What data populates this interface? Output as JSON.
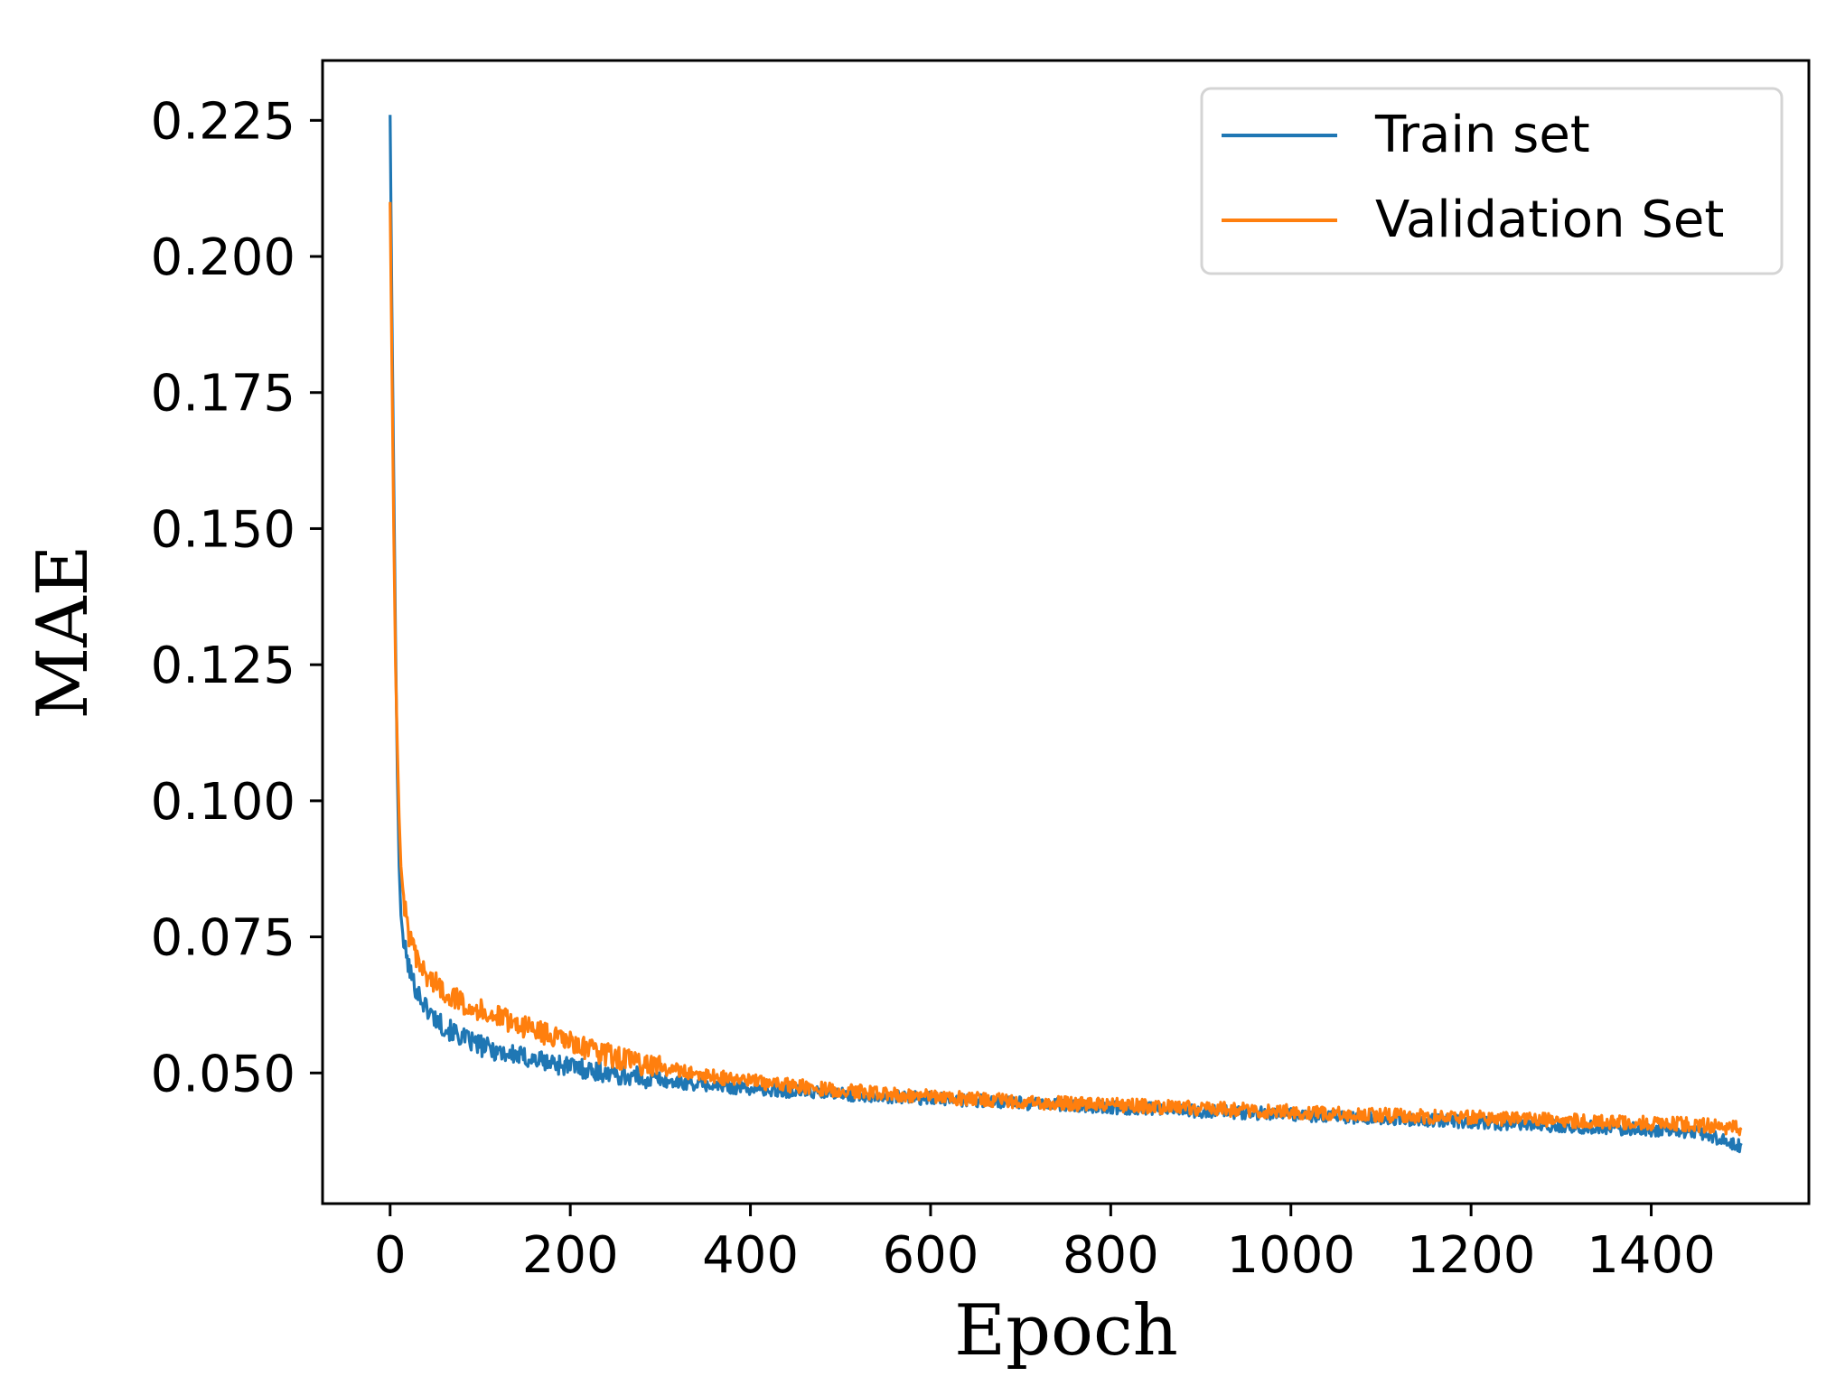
{
  "chart_data": {
    "type": "line",
    "title": "",
    "xlabel": "Epoch",
    "ylabel": "MAE",
    "xlim": [
      -75,
      1575
    ],
    "ylim": [
      0.026,
      0.236
    ],
    "xticks": [
      0,
      200,
      400,
      600,
      800,
      1000,
      1200,
      1400
    ],
    "xtick_labels": [
      "0",
      "200",
      "400",
      "600",
      "800",
      "1000",
      "1200",
      "1400"
    ],
    "yticks": [
      0.05,
      0.075,
      0.1,
      0.125,
      0.15,
      0.175,
      0.2,
      0.225
    ],
    "ytick_labels": [
      "0.050",
      "0.075",
      "0.100",
      "0.125",
      "0.150",
      "0.175",
      "0.200",
      "0.225"
    ],
    "grid": false,
    "legend_position": "top-right",
    "series": [
      {
        "name": "Train set",
        "color": "#1f77b4",
        "x": [
          0,
          2,
          4,
          6,
          8,
          10,
          12,
          15,
          20,
          25,
          30,
          40,
          50,
          60,
          80,
          100,
          125,
          150,
          175,
          200,
          225,
          250,
          275,
          300,
          350,
          400,
          450,
          500,
          550,
          600,
          650,
          700,
          750,
          800,
          850,
          900,
          950,
          1000,
          1050,
          1100,
          1150,
          1200,
          1250,
          1300,
          1350,
          1400,
          1450,
          1500
        ],
        "values": [
          0.226,
          0.19,
          0.16,
          0.13,
          0.105,
          0.088,
          0.079,
          0.074,
          0.07,
          0.067,
          0.065,
          0.062,
          0.06,
          0.0585,
          0.0565,
          0.055,
          0.0538,
          0.0528,
          0.052,
          0.0512,
          0.0505,
          0.0498,
          0.0492,
          0.0486,
          0.0478,
          0.0471,
          0.0466,
          0.0461,
          0.0457,
          0.0453,
          0.0449,
          0.0445,
          0.0441,
          0.0437,
          0.0434,
          0.043,
          0.0427,
          0.0424,
          0.042,
          0.0417,
          0.0414,
          0.041,
          0.0406,
          0.0403,
          0.0399,
          0.0396,
          0.0392,
          0.0365
        ],
        "noise_amplitude": 0.0012
      },
      {
        "name": "Validation Set",
        "color": "#ff7f0e",
        "x": [
          0,
          2,
          4,
          6,
          8,
          10,
          12,
          15,
          20,
          25,
          30,
          40,
          50,
          60,
          80,
          100,
          125,
          150,
          175,
          200,
          225,
          250,
          275,
          300,
          350,
          400,
          450,
          500,
          550,
          600,
          650,
          700,
          750,
          800,
          850,
          900,
          950,
          1000,
          1050,
          1100,
          1150,
          1200,
          1250,
          1300,
          1350,
          1400,
          1450,
          1500
        ],
        "values": [
          0.21,
          0.18,
          0.15,
          0.125,
          0.11,
          0.097,
          0.088,
          0.082,
          0.076,
          0.073,
          0.0705,
          0.068,
          0.0665,
          0.065,
          0.063,
          0.0615,
          0.06,
          0.0585,
          0.057,
          0.0555,
          0.054,
          0.053,
          0.0518,
          0.051,
          0.0495,
          0.0485,
          0.0476,
          0.0468,
          0.0462,
          0.0457,
          0.0452,
          0.0448,
          0.0444,
          0.0441,
          0.0438,
          0.0435,
          0.0432,
          0.0429,
          0.0426,
          0.0423,
          0.042,
          0.0418,
          0.0415,
          0.0413,
          0.041,
          0.0408,
          0.0405,
          0.0398
        ],
        "noise_amplitude": 0.0013
      }
    ]
  }
}
